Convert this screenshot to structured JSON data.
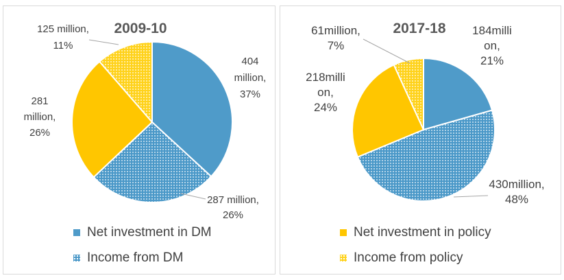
{
  "chart_data": [
    {
      "type": "pie",
      "title": "2009-10",
      "slices": [
        {
          "name": "Net investment in DM",
          "value": 404,
          "label_lines": [
            "404",
            "million,",
            "37%"
          ],
          "pattern": "solid",
          "color": "#4f9bc9"
        },
        {
          "name": "Income from DM",
          "value": 287,
          "label_lines": [
            "287 million,",
            "26%"
          ],
          "pattern": "dots",
          "color": "#4a98c8"
        },
        {
          "name": "Net investment in policy",
          "value": 281,
          "label_lines": [
            "281",
            "million,",
            "26%"
          ],
          "pattern": "solid",
          "color": "#ffc600"
        },
        {
          "name": "Income from policy",
          "value": 125,
          "label_lines": [
            "125 million,",
            "11%"
          ],
          "pattern": "dots",
          "color": "#ffd21a"
        }
      ]
    },
    {
      "type": "pie",
      "title": "2017-18",
      "slices": [
        {
          "name": "Net investment in DM",
          "value": 184,
          "label_lines": [
            "184milli",
            "on,",
            "21%"
          ],
          "pattern": "solid",
          "color": "#4f9bc9"
        },
        {
          "name": "Income from DM",
          "value": 430,
          "label_lines": [
            "430million,",
            "48%"
          ],
          "pattern": "dots",
          "color": "#4a98c8"
        },
        {
          "name": "Net investment in policy",
          "value": 218,
          "label_lines": [
            "218milli",
            "on,",
            "24%"
          ],
          "pattern": "solid",
          "color": "#ffc600"
        },
        {
          "name": "Income from policy",
          "value": 61,
          "label_lines": [
            "61million,",
            "7%"
          ],
          "pattern": "dots",
          "color": "#ffd21a"
        }
      ]
    }
  ],
  "legend": {
    "left": [
      {
        "label": "Net investment in DM",
        "color": "#4f9bc9",
        "pattern": "solid"
      },
      {
        "label": "Income from DM",
        "color": "#4a98c8",
        "pattern": "dots"
      }
    ],
    "right": [
      {
        "label": "Net investment in policy",
        "color": "#ffc600",
        "pattern": "solid"
      },
      {
        "label": "Income from policy",
        "color": "#ffd21a",
        "pattern": "dots"
      }
    ]
  }
}
